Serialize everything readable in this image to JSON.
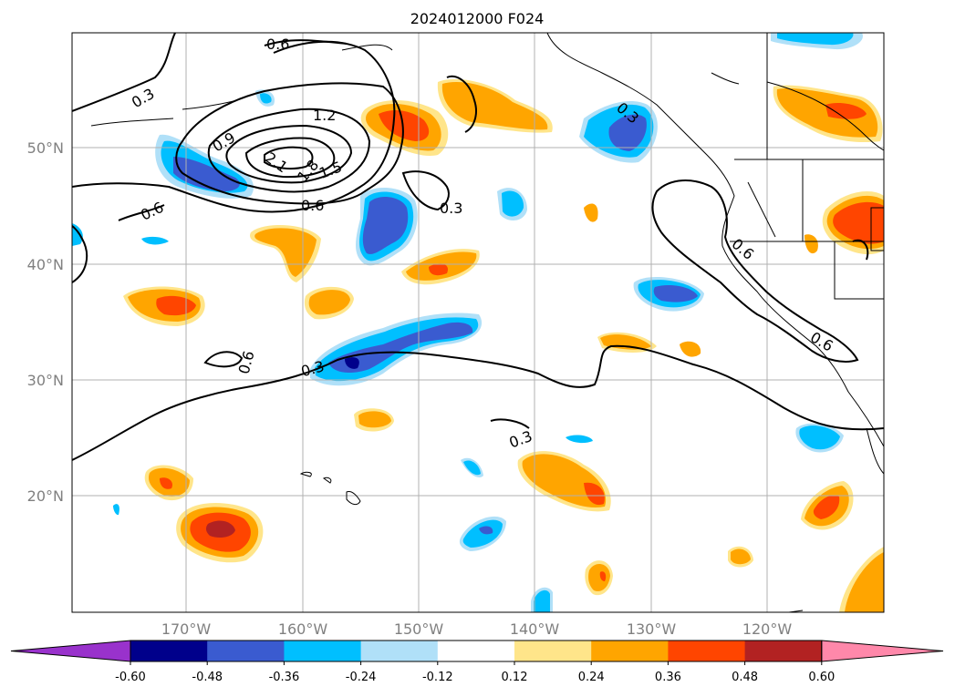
{
  "title": "2024012000 F024",
  "lat_labels": [
    "50°N",
    "40°N",
    "30°N",
    "20°N"
  ],
  "lon_labels": [
    "170°W",
    "160°W",
    "150°W",
    "140°W",
    "130°W",
    "120°W"
  ],
  "contour_labels": [
    "0.3",
    "0.6",
    "0.9",
    "1.2",
    "1.5",
    "1.8",
    "2.1",
    "0.6",
    "0.3",
    "0.6",
    "0.3",
    "0.3",
    "0.6",
    "0.3",
    "0.6",
    "0.6"
  ],
  "colorbar": {
    "ticks": [
      "-0.60",
      "-0.48",
      "-0.36",
      "-0.24",
      "-0.12",
      "0.12",
      "0.24",
      "0.36",
      "0.48",
      "0.60"
    ],
    "colors": [
      "#9932cc",
      "#00008b",
      "#3a5bd0",
      "#00bfff",
      "#b0e0f8",
      "#ffffff",
      "#ffe58a",
      "#ffa500",
      "#ff4500",
      "#b22222",
      "#ff88aa"
    ]
  },
  "colors": {
    "blue_dark": "#00008b",
    "blue_mid": "#3a5bd0",
    "blue": "#00bfff",
    "blue_light": "#b0e0f8",
    "yellow": "#ffe58a",
    "orange": "#ffa500",
    "orange_red": "#ff4500",
    "red_dark": "#b22222"
  }
}
